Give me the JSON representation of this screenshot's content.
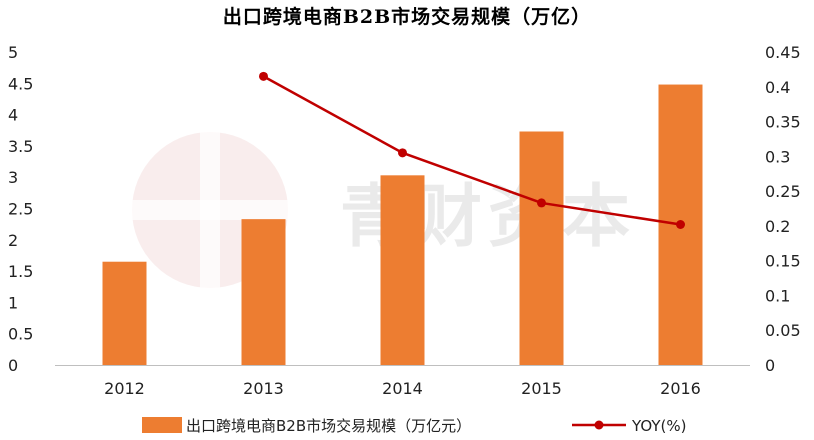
{
  "chart_data": {
    "type": "bar+line",
    "title": "出口跨境电商B2B市场交易规模（万亿）",
    "categories": [
      "2012",
      "2013",
      "2014",
      "2015",
      "2016"
    ],
    "series": [
      {
        "name": "出口跨境电商B2B市场交易规模（万亿元）",
        "type": "bar",
        "axis": "left",
        "values": [
          1.65,
          2.33,
          3.03,
          3.73,
          4.48
        ]
      },
      {
        "name": "YOY(%)",
        "type": "line",
        "axis": "right",
        "values": [
          null,
          0.415,
          0.305,
          0.233,
          0.202
        ]
      }
    ],
    "y_left": {
      "ylim": [
        0,
        5
      ],
      "ticks": [
        "0",
        "0.5",
        "1",
        "1.5",
        "2",
        "2.5",
        "3",
        "3.5",
        "4",
        "4.5",
        "5"
      ]
    },
    "y_right": {
      "ylim": [
        0,
        0.45
      ],
      "ticks": [
        "0",
        "0.05",
        "0.1",
        "0.15",
        "0.2",
        "0.25",
        "0.3",
        "0.35",
        "0.4",
        "0.45"
      ]
    },
    "grid": false,
    "legend_position": "bottom",
    "colors": {
      "bar": "#ed7d31",
      "line": "#c00000"
    },
    "watermark": "青财资本"
  }
}
